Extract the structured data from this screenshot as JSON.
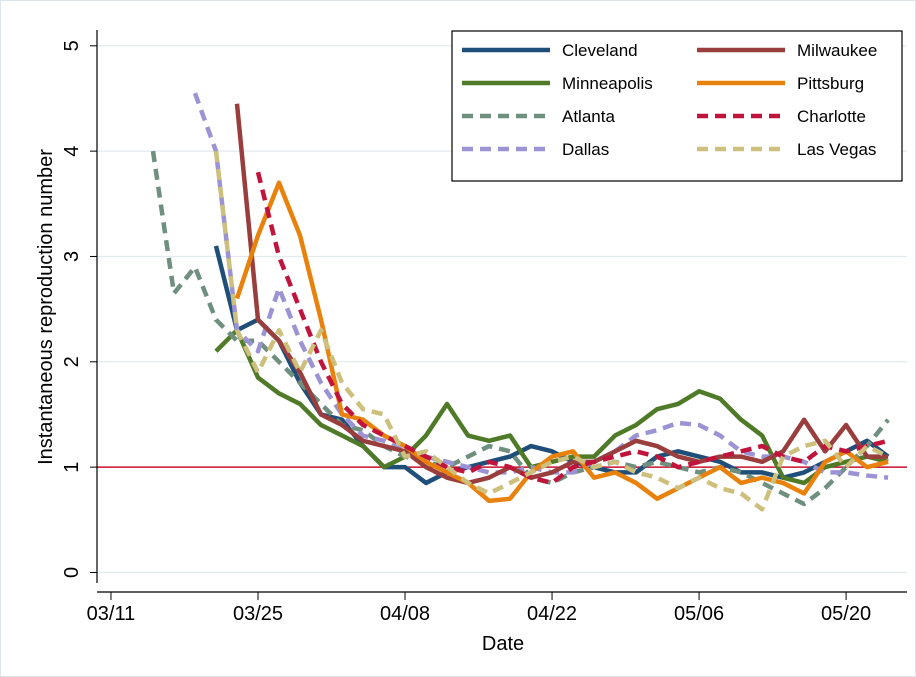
{
  "chart_data": {
    "type": "line",
    "x_label": "Date",
    "y_label": "Instantaneous reproduction number",
    "x": [
      4,
      6,
      8,
      10,
      12,
      14,
      16,
      18,
      20,
      22,
      24,
      26,
      28,
      30,
      32,
      34,
      36,
      38,
      40,
      42,
      44,
      46,
      48,
      50,
      52,
      54,
      56,
      58,
      60,
      62,
      64,
      66,
      68,
      70,
      72,
      74
    ],
    "xlim": [
      -1.33,
      75.8
    ],
    "xticks": [
      {
        "value": 0,
        "label": "03/11"
      },
      {
        "value": 14,
        "label": "03/25"
      },
      {
        "value": 28,
        "label": "04/08"
      },
      {
        "value": 42,
        "label": "04/22"
      },
      {
        "value": 56,
        "label": "05/06"
      },
      {
        "value": 70,
        "label": "05/20"
      }
    ],
    "ylim": [
      -0.1,
      5.15
    ],
    "yticks": [
      0,
      1,
      2,
      3,
      4,
      5
    ],
    "grid": true,
    "reference_line": 1,
    "reference_color": "#c8102e",
    "legend_position": "top-right",
    "legend_columns": 2,
    "series": [
      {
        "name": "Cleveland",
        "color": "#1f4e79",
        "style": "solid",
        "values": [
          null,
          null,
          null,
          3.1,
          2.3,
          2.4,
          2.2,
          1.8,
          1.5,
          1.45,
          1.2,
          1.0,
          1.0,
          0.85,
          0.95,
          1.0,
          1.05,
          1.1,
          1.2,
          1.15,
          1.05,
          1.0,
          0.95,
          0.95,
          1.1,
          1.15,
          1.1,
          1.05,
          0.95,
          0.95,
          0.9,
          0.95,
          1.05,
          1.15,
          1.25,
          1.1
        ]
      },
      {
        "name": "Minneapolis",
        "color": "#4f7a28",
        "style": "solid",
        "values": [
          null,
          null,
          null,
          2.1,
          2.3,
          1.85,
          1.7,
          1.6,
          1.4,
          1.3,
          1.2,
          1.0,
          1.1,
          1.3,
          1.6,
          1.3,
          1.25,
          1.3,
          1.0,
          1.05,
          1.1,
          1.1,
          1.3,
          1.4,
          1.55,
          1.6,
          1.72,
          1.65,
          1.45,
          1.3,
          0.9,
          0.85,
          1.0,
          1.05,
          1.1,
          1.05
        ]
      },
      {
        "name": "Atlanta",
        "color": "#6f8f7f",
        "style": "dashed",
        "values": [
          4.0,
          2.65,
          2.9,
          2.4,
          2.2,
          2.2,
          2.0,
          1.8,
          1.6,
          1.4,
          1.35,
          1.2,
          1.1,
          1.05,
          1.0,
          1.1,
          1.2,
          1.15,
          0.9,
          0.85,
          0.95,
          1.0,
          1.05,
          1.0,
          1.05,
          1.0,
          0.95,
          1.0,
          0.95,
          0.85,
          0.75,
          0.65,
          0.8,
          1.0,
          1.2,
          1.45
        ]
      },
      {
        "name": "Dallas",
        "color": "#9b93d4",
        "style": "dashed",
        "values": [
          null,
          null,
          4.55,
          4.0,
          2.3,
          2.1,
          2.7,
          2.2,
          1.8,
          1.5,
          1.3,
          1.25,
          1.15,
          1.1,
          1.05,
          1.0,
          0.95,
          0.95,
          1.0,
          0.95,
          0.95,
          1.05,
          1.15,
          1.3,
          1.35,
          1.42,
          1.4,
          1.3,
          1.15,
          1.1,
          1.1,
          1.05,
          0.95,
          0.95,
          0.92,
          0.9
        ]
      },
      {
        "name": "Milwaukee",
        "color": "#993d3d",
        "style": "solid",
        "values": [
          null,
          null,
          null,
          null,
          4.45,
          2.4,
          2.2,
          1.9,
          1.5,
          1.4,
          1.25,
          1.2,
          1.15,
          1.0,
          0.9,
          0.85,
          0.9,
          1.0,
          0.9,
          0.95,
          1.05,
          1.05,
          1.15,
          1.25,
          1.2,
          1.1,
          1.05,
          1.1,
          1.1,
          1.05,
          1.15,
          1.45,
          1.15,
          1.4,
          1.1,
          1.1
        ]
      },
      {
        "name": "Pittsburg",
        "color": "#e8820c",
        "style": "solid",
        "values": [
          null,
          null,
          null,
          null,
          2.6,
          3.2,
          3.7,
          3.2,
          2.4,
          1.5,
          1.45,
          1.3,
          1.2,
          1.05,
          0.95,
          0.85,
          0.68,
          0.7,
          0.95,
          1.1,
          1.15,
          0.9,
          0.95,
          0.85,
          0.7,
          0.8,
          0.9,
          1.0,
          0.85,
          0.9,
          0.85,
          0.75,
          1.05,
          1.15,
          1.0,
          1.05
        ]
      },
      {
        "name": "Charlotte",
        "color": "#c0143c",
        "style": "dashed",
        "values": [
          null,
          null,
          null,
          null,
          null,
          3.8,
          3.0,
          2.5,
          2.0,
          1.6,
          1.4,
          1.3,
          1.2,
          1.1,
          1.0,
          0.95,
          1.05,
          1.0,
          0.9,
          0.85,
          1.0,
          1.05,
          1.1,
          1.15,
          1.1,
          1.0,
          1.05,
          1.1,
          1.15,
          1.2,
          1.1,
          1.05,
          1.2,
          1.15,
          1.2,
          1.25
        ]
      },
      {
        "name": "Las Vegas",
        "color": "#cdbf7c",
        "style": "dashed",
        "values": [
          null,
          null,
          null,
          4.0,
          2.3,
          1.9,
          2.3,
          1.9,
          2.3,
          1.8,
          1.55,
          1.5,
          1.1,
          1.15,
          1.0,
          0.85,
          0.75,
          0.85,
          0.95,
          1.05,
          1.1,
          1.0,
          1.05,
          0.95,
          0.9,
          0.8,
          0.9,
          0.8,
          0.75,
          0.6,
          1.1,
          1.2,
          1.25,
          1.0,
          1.2,
          1.1
        ]
      }
    ]
  }
}
